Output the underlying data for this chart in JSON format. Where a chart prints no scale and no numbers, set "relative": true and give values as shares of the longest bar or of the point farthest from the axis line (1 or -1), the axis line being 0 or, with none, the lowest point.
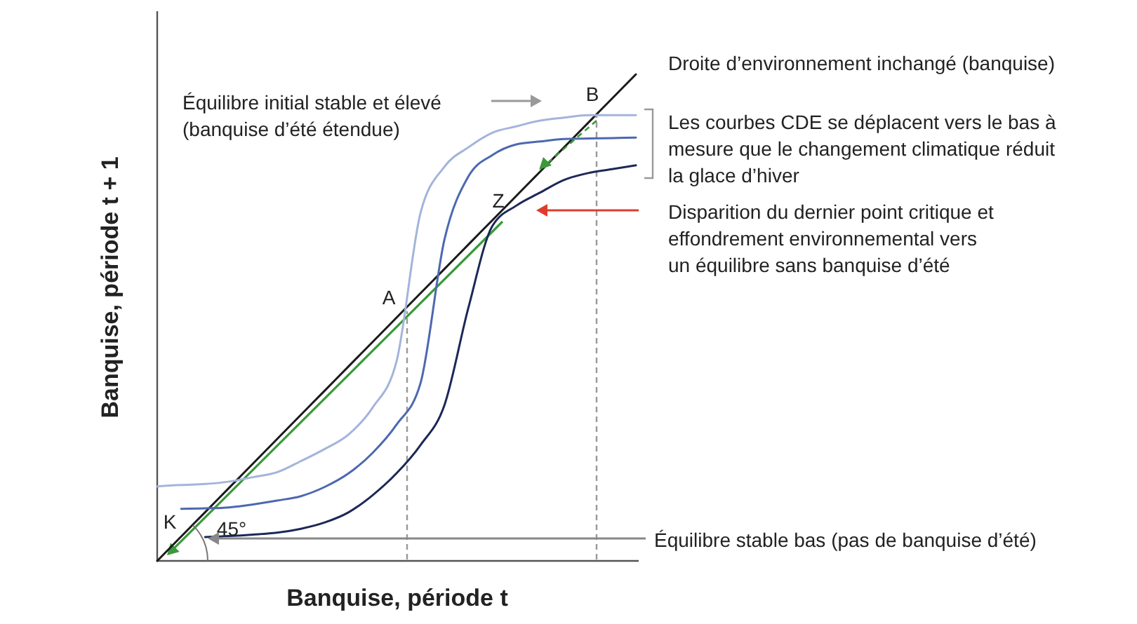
{
  "chart_data": {
    "type": "line",
    "relative": true,
    "xlabel": "Banquise, période t",
    "ylabel": "Banquise, période t + 1",
    "marker": "none",
    "categories": [
      null,
      null,
      null,
      null,
      null,
      null,
      null,
      null,
      null,
      null,
      null,
      null,
      null,
      null,
      null,
      null,
      null,
      null,
      null,
      null,
      null
    ],
    "series": [
      {
        "color": "#1a1a1a",
        "values": [
          0,
          0.05,
          0.1,
          0.15,
          0.2,
          0.25,
          0.3,
          0.35,
          0.4,
          0.45,
          0.5,
          0.55,
          0.6,
          0.65,
          0.7,
          0.75,
          0.8,
          0.85,
          0.9,
          0.95,
          1
        ]
      },
      {
        "color": "#a3b4dc",
        "values": [
          0.153,
          0.156,
          0.158,
          0.163,
          0.172,
          0.182,
          0.205,
          0.23,
          0.26,
          0.315,
          0.41,
          0.715,
          0.81,
          0.85,
          0.88,
          0.893,
          0.905,
          0.911,
          0.916,
          0.916,
          0.916
        ]
      },
      {
        "color": "#4d68b0",
        "values": [
          null,
          0.107,
          0.108,
          0.11,
          0.116,
          0.124,
          0.133,
          0.152,
          0.18,
          0.222,
          0.28,
          0.365,
          0.66,
          0.79,
          0.834,
          0.856,
          0.862,
          0.867,
          0.868,
          0.869,
          0.87
        ]
      },
      {
        "color": "#1c2857",
        "values": [
          null,
          null,
          0.049,
          0.051,
          0.054,
          0.058,
          0.066,
          0.079,
          0.1,
          0.135,
          0.18,
          0.238,
          0.32,
          0.52,
          0.688,
          0.73,
          0.757,
          0.783,
          0.797,
          0.805,
          0.813
        ]
      }
    ],
    "annotations": [
      "Droite d’environnement inchangé (banquise)",
      "Équilibre initial stable et élevé\n(banquise d’été étendue)",
      "Les courbes CDE se déplacent vers le bas à\nmesure que le changement climatique réduit\nla glace d’hiver",
      "Disparition du dernier point critique et\neffondrement environnemental vers\nun équilibre sans banquise d’été",
      "Équilibre stable bas (pas de banquise d’été)",
      "A",
      "B",
      "Z",
      "K",
      "45°"
    ]
  }
}
